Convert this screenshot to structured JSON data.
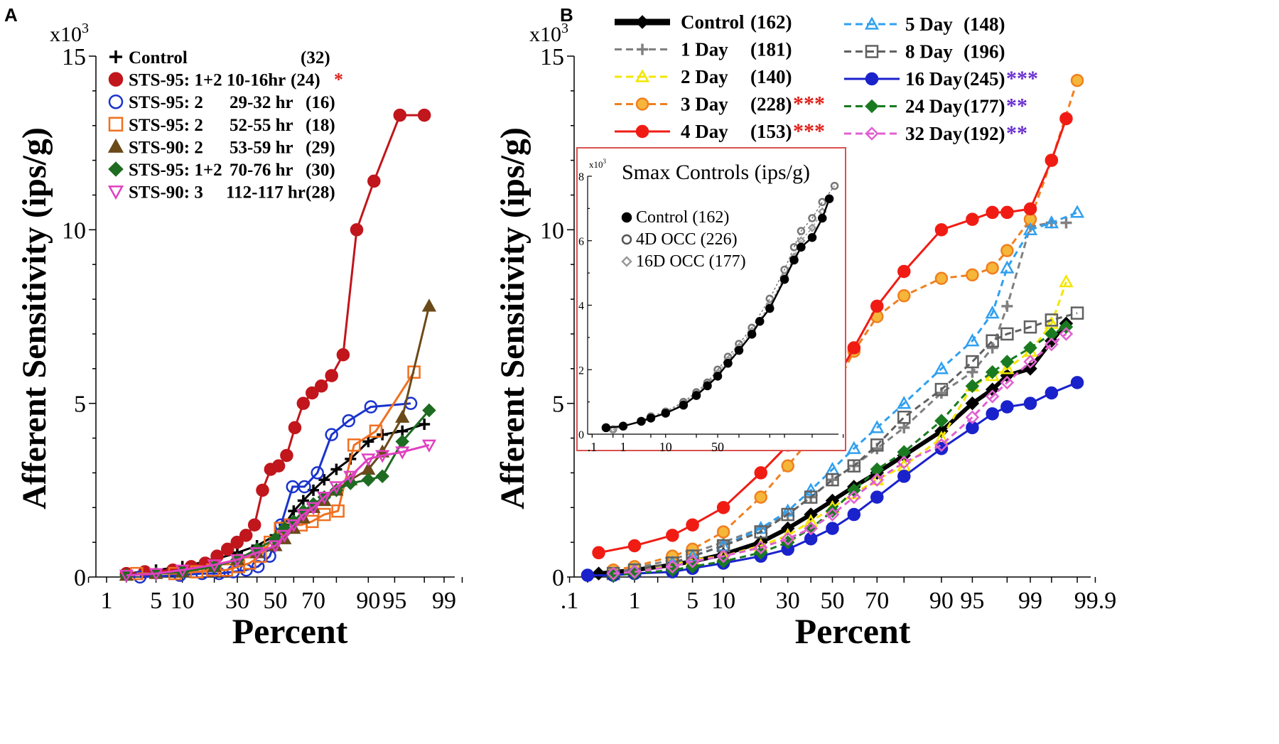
{
  "chart_data": [
    {
      "panel": "A",
      "type": "line",
      "xscale": "probability",
      "xlabel": "Percent",
      "ylabel": "Afferent Sensitivity (ips/g)",
      "ymultiplier": "x10",
      "ymultiplier_exp": "3",
      "ylim": [
        0,
        15
      ],
      "xticks": [
        1,
        5,
        10,
        30,
        50,
        70,
        90,
        95,
        99
      ],
      "yticks": [
        0,
        5,
        10,
        15
      ],
      "legend_position": "top-left",
      "series": [
        {
          "name": "Control",
          "n": "(32)",
          "color": "#000000",
          "marker": "plus",
          "fill": "none",
          "dashed": false,
          "x": [
            2,
            5,
            10,
            20,
            30,
            40,
            50,
            55,
            60,
            65,
            70,
            75,
            80,
            85,
            90,
            93,
            96,
            98
          ],
          "y": [
            0.1,
            0.2,
            0.3,
            0.5,
            0.7,
            0.9,
            1.2,
            1.5,
            1.9,
            2.2,
            2.5,
            2.8,
            3.1,
            3.4,
            3.9,
            4.1,
            4.2,
            4.4
          ]
        },
        {
          "name": "STS-95: 1+2 10-16hr",
          "n": "(24)",
          "sig": "*",
          "sig_color": "#e0201a",
          "color": "#c0161c",
          "marker": "circle",
          "fill": "#c0161c",
          "dashed": false,
          "x": [
            2,
            3.6,
            7.9,
            12.3,
            16.7,
            21.1,
            25.5,
            29.9,
            34.3,
            38.7,
            43,
            47.4,
            51.8,
            56.2,
            60.6,
            65,
            69.4,
            73.7,
            78.1,
            82.5,
            86.9,
            91.3,
            95.7,
            98
          ],
          "y": [
            0.1,
            0.15,
            0.2,
            0.3,
            0.4,
            0.6,
            0.8,
            1.0,
            1.2,
            1.5,
            2.5,
            3.1,
            3.2,
            3.5,
            4.3,
            5.0,
            5.3,
            5.5,
            5.8,
            6.4,
            10.0,
            11.4,
            13.3,
            13.3
          ]
        },
        {
          "name": "STS-95: 2",
          "time": "29-32 hr",
          "n": "(16)",
          "color": "#1a33cc",
          "marker": "circle",
          "fill": "none",
          "dashed": false,
          "x": [
            3.1,
            9.4,
            15.6,
            21.9,
            28.1,
            34.4,
            40.6,
            46.9,
            53.1,
            59.4,
            65.6,
            71.9,
            78.1,
            84.4,
            90.6,
            96.9
          ],
          "y": [
            0.0,
            0.05,
            0.1,
            0.1,
            0.15,
            0.2,
            0.3,
            0.6,
            1.5,
            2.6,
            2.6,
            3.0,
            4.1,
            4.5,
            4.9,
            5.0
          ]
        },
        {
          "name": "STS-95: 2",
          "time": "52-55 hr",
          "n": "(18)",
          "color": "#f07020",
          "marker": "square",
          "fill": "none",
          "dashed": false,
          "x": [
            2.8,
            8.3,
            13.9,
            19.4,
            25,
            30.6,
            36.1,
            41.7,
            47.2,
            52.8,
            58.3,
            63.9,
            69.4,
            75,
            80.6,
            86.1,
            91.7,
            97.2
          ],
          "y": [
            0.1,
            0.1,
            0.15,
            0.2,
            0.2,
            0.3,
            0.4,
            0.6,
            1.0,
            1.4,
            1.5,
            1.5,
            1.6,
            1.8,
            1.9,
            3.8,
            4.2,
            5.9
          ]
        },
        {
          "name": "STS-90: 2",
          "time": "53-59 hr",
          "n": "(29)",
          "color": "#6b4a1a",
          "marker": "triangle",
          "fill": "#6b4a1a",
          "dashed": false,
          "x": [
            2,
            5,
            10,
            20,
            30,
            40,
            50,
            55,
            60,
            65,
            70,
            75,
            80,
            85,
            90,
            93,
            96,
            98.3
          ],
          "y": [
            0.05,
            0.1,
            0.15,
            0.3,
            0.5,
            0.7,
            0.9,
            1.1,
            1.4,
            1.7,
            2.0,
            2.2,
            2.5,
            2.8,
            3.1,
            3.6,
            4.6,
            7.8
          ]
        },
        {
          "name": "STS-95: 1+2",
          "time": "70-76 hr",
          "n": "(30)",
          "color": "#1e6b22",
          "marker": "diamond",
          "fill": "#1e6b22",
          "dashed": false,
          "x": [
            2,
            5,
            10,
            20,
            30,
            40,
            50,
            55,
            60,
            65,
            70,
            75,
            80,
            85,
            90,
            93,
            96,
            98.3
          ],
          "y": [
            0.05,
            0.1,
            0.15,
            0.3,
            0.5,
            0.8,
            1.1,
            1.4,
            1.6,
            1.9,
            2.1,
            2.3,
            2.5,
            2.7,
            2.8,
            2.9,
            3.9,
            4.8
          ]
        },
        {
          "name": "STS-90: 3",
          "time": "112-117 hr",
          "n": "(28)",
          "color": "#e040c0",
          "marker": "triangle-down",
          "fill": "none",
          "dashed": false,
          "x": [
            2,
            5,
            10,
            20,
            30,
            40,
            50,
            55,
            60,
            65,
            70,
            75,
            80,
            85,
            90,
            93,
            96,
            98.3
          ],
          "y": [
            0.05,
            0.1,
            0.2,
            0.35,
            0.5,
            0.7,
            0.9,
            1.2,
            1.5,
            1.8,
            2.0,
            2.3,
            2.6,
            2.9,
            3.4,
            3.5,
            3.6,
            3.8
          ]
        }
      ]
    },
    {
      "panel": "B",
      "type": "line",
      "xscale": "probability",
      "xlabel": "Percent",
      "ylabel": "Afferent Sensitivity (ips/g)",
      "ymultiplier": "x10",
      "ymultiplier_exp": "3",
      "ylim": [
        0,
        15
      ],
      "xticks": [
        ".1",
        "1",
        "5",
        "10",
        "30",
        "50",
        "70",
        "90",
        "95",
        "99",
        "99.9"
      ],
      "yticks": [
        0,
        5,
        10,
        15
      ],
      "legend_position": "top",
      "series": [
        {
          "name": "Control",
          "n": "(162)",
          "color": "#000000",
          "marker": "diamond",
          "fill": "#000000",
          "dashed": false,
          "x": [
            0.3,
            1,
            3,
            5,
            10,
            20,
            30,
            40,
            50,
            60,
            70,
            80,
            90,
            95,
            97,
            98,
            99,
            99.5,
            99.7
          ],
          "y": [
            0.1,
            0.2,
            0.35,
            0.45,
            0.65,
            1.0,
            1.4,
            1.8,
            2.2,
            2.6,
            3.0,
            3.5,
            4.2,
            5.0,
            5.4,
            5.8,
            6.0,
            6.8,
            7.3
          ]
        },
        {
          "name": "1 Day",
          "n": "(181)",
          "color": "#808080",
          "marker": "plus",
          "fill": "none",
          "dashed": true,
          "x": [
            0.5,
            1,
            3,
            5,
            10,
            20,
            30,
            40,
            50,
            60,
            70,
            80,
            90,
            95,
            97,
            98,
            99,
            99.5,
            99.7
          ],
          "y": [
            0.15,
            0.25,
            0.5,
            0.7,
            1.0,
            1.4,
            1.8,
            2.3,
            2.8,
            3.2,
            3.7,
            4.3,
            5.3,
            5.9,
            6.6,
            7.8,
            10.1,
            10.2,
            10.2
          ]
        },
        {
          "name": "2 Day",
          "n": "(140)",
          "color": "#f2e600",
          "marker": "triangle",
          "fill": "none",
          "dashed": true,
          "x": [
            0.5,
            1,
            3,
            5,
            10,
            20,
            30,
            40,
            50,
            60,
            70,
            80,
            90,
            95,
            97,
            98,
            99,
            99.5,
            99.7
          ],
          "y": [
            0.1,
            0.2,
            0.35,
            0.5,
            0.6,
            0.9,
            1.2,
            1.6,
            2.0,
            2.4,
            2.8,
            3.2,
            4.0,
            5.5,
            5.8,
            6.0,
            6.5,
            7.3,
            8.5
          ]
        },
        {
          "name": "3 Day",
          "n": "(228)",
          "sig": "***",
          "sig_color": "#e0201a",
          "color": "#f08020",
          "marker": "circle",
          "fill": "#f5b63a",
          "dashed": true,
          "x": [
            0.5,
            1,
            3,
            5,
            10,
            20,
            30,
            40,
            50,
            60,
            70,
            80,
            90,
            95,
            97,
            98,
            99,
            99.5,
            99.8
          ],
          "y": [
            0.2,
            0.3,
            0.6,
            0.8,
            1.3,
            2.3,
            3.2,
            4.0,
            5.3,
            6.5,
            7.5,
            8.1,
            8.6,
            8.7,
            8.9,
            9.4,
            10.3,
            12.0,
            14.3
          ]
        },
        {
          "name": "4 Day",
          "n": "(153)",
          "sig": "***",
          "sig_color": "#e0201a",
          "color": "#f01c14",
          "marker": "circle",
          "fill": "#f01c14",
          "dashed": false,
          "x": [
            0.3,
            1,
            3,
            5,
            10,
            20,
            30,
            40,
            50,
            60,
            70,
            80,
            90,
            95,
            97,
            98,
            99,
            99.5,
            99.7
          ],
          "y": [
            0.7,
            0.9,
            1.2,
            1.5,
            2.0,
            3.0,
            3.8,
            4.5,
            5.5,
            6.6,
            7.8,
            8.8,
            10.0,
            10.3,
            10.5,
            10.5,
            10.6,
            12.0,
            13.2
          ]
        },
        {
          "name": "5 Day",
          "n": "(148)",
          "color": "#30a0f0",
          "marker": "triangle",
          "fill": "none",
          "dashed": true,
          "x": [
            0.5,
            1,
            3,
            5,
            10,
            20,
            30,
            40,
            50,
            60,
            70,
            80,
            90,
            95,
            97,
            98,
            99,
            99.5,
            99.8
          ],
          "y": [
            0.1,
            0.2,
            0.4,
            0.6,
            0.9,
            1.4,
            1.9,
            2.5,
            3.1,
            3.7,
            4.3,
            5.0,
            6.0,
            6.8,
            7.6,
            8.9,
            10.0,
            10.2,
            10.5
          ]
        },
        {
          "name": "8 Day",
          "n": "(196)",
          "color": "#606060",
          "marker": "square",
          "fill": "none",
          "dashed": true,
          "x": [
            0.5,
            1,
            3,
            5,
            10,
            20,
            30,
            40,
            50,
            60,
            70,
            80,
            90,
            95,
            97,
            98,
            99,
            99.5,
            99.8
          ],
          "y": [
            0.1,
            0.2,
            0.4,
            0.6,
            0.9,
            1.3,
            1.8,
            2.3,
            2.8,
            3.2,
            3.8,
            4.6,
            5.4,
            6.2,
            6.8,
            7.0,
            7.2,
            7.4,
            7.6
          ]
        },
        {
          "name": "16 Day",
          "n": "(245)",
          "sig": "***",
          "sig_color": "#6a2fd0",
          "color": "#1a22cc",
          "marker": "circle",
          "fill": "#1a22cc",
          "dashed": false,
          "x": [
            0.2,
            0.5,
            1,
            3,
            5,
            10,
            20,
            30,
            40,
            50,
            60,
            70,
            80,
            90,
            95,
            97,
            98,
            99,
            99.5,
            99.8
          ],
          "y": [
            0.05,
            0.05,
            0.1,
            0.15,
            0.25,
            0.4,
            0.6,
            0.8,
            1.1,
            1.4,
            1.8,
            2.3,
            2.9,
            3.7,
            4.3,
            4.7,
            4.9,
            5.0,
            5.3,
            5.6
          ]
        },
        {
          "name": "24 Day",
          "n": "(177)",
          "sig": "**",
          "sig_color": "#6a2fd0",
          "color": "#1a7a20",
          "marker": "diamond",
          "fill": "#1a7a20",
          "dashed": true,
          "x": [
            0.5,
            1,
            3,
            5,
            10,
            20,
            30,
            40,
            50,
            60,
            70,
            80,
            90,
            95,
            97,
            98,
            99,
            99.5,
            99.7
          ],
          "y": [
            0.05,
            0.1,
            0.2,
            0.3,
            0.45,
            0.7,
            1.0,
            1.4,
            1.9,
            2.5,
            3.1,
            3.6,
            4.5,
            5.5,
            5.9,
            6.2,
            6.6,
            7.0,
            7.2
          ]
        },
        {
          "name": "32 Day",
          "n": "(192)",
          "sig": "**",
          "sig_color": "#6a2fd0",
          "color": "#e060d0",
          "marker": "diamond",
          "fill": "none",
          "dashed": true,
          "x": [
            0.5,
            1,
            3,
            5,
            10,
            20,
            30,
            40,
            50,
            60,
            70,
            80,
            90,
            95,
            97,
            98,
            99,
            99.5,
            99.7
          ],
          "y": [
            0.1,
            0.15,
            0.3,
            0.45,
            0.6,
            0.85,
            1.1,
            1.4,
            1.8,
            2.3,
            2.8,
            3.3,
            3.8,
            4.6,
            5.2,
            5.6,
            6.2,
            6.7,
            7.0
          ]
        }
      ]
    },
    {
      "panel": "B-inset",
      "type": "scatter",
      "title": "Smax Controls (ips/g)",
      "xscale": "probability",
      "ymultiplier": "x10",
      "ymultiplier_exp": "3",
      "ylim": [
        0,
        8
      ],
      "xticks": [
        ".1",
        "1",
        "10",
        "50"
      ],
      "yticks": [
        0,
        2,
        4,
        6,
        8
      ],
      "legend_position": "left",
      "series": [
        {
          "name": "Control",
          "n": "(162)",
          "color": "#000000",
          "marker": "circle",
          "fill": "#000000",
          "x": [
            0.3,
            1,
            3,
            5,
            10,
            20,
            30,
            40,
            50,
            60,
            70,
            80,
            85,
            90,
            95,
            97,
            98,
            99,
            99.5,
            99.7
          ],
          "y": [
            0.2,
            0.25,
            0.4,
            0.5,
            0.65,
            0.9,
            1.2,
            1.5,
            1.8,
            2.2,
            2.6,
            3.1,
            3.5,
            3.9,
            4.8,
            5.4,
            5.8,
            6.1,
            6.7,
            7.3
          ]
        },
        {
          "name": "4D OCC",
          "n": "(226)",
          "color": "#777777",
          "marker": "circle",
          "fill": "none",
          "x": [
            0.5,
            1,
            3,
            5,
            10,
            20,
            30,
            40,
            50,
            60,
            70,
            80,
            90,
            95,
            97,
            98,
            99,
            99.5,
            99.8
          ],
          "y": [
            0.15,
            0.25,
            0.4,
            0.55,
            0.7,
            1.0,
            1.3,
            1.6,
            2.0,
            2.4,
            2.8,
            3.3,
            4.2,
            5.1,
            5.8,
            6.3,
            6.7,
            7.2,
            7.7
          ]
        },
        {
          "name": "16D OCC",
          "n": "(177)",
          "color": "#999999",
          "marker": "diamond",
          "fill": "none",
          "x": [
            0.5,
            1,
            3,
            5,
            10,
            20,
            30,
            40,
            50,
            60,
            70,
            80,
            90,
            95,
            97,
            98,
            99,
            99.5
          ],
          "y": [
            0.15,
            0.25,
            0.4,
            0.55,
            0.7,
            0.95,
            1.25,
            1.55,
            1.9,
            2.3,
            2.7,
            3.2,
            4.0,
            4.9,
            5.5,
            6.0,
            6.4,
            6.9
          ]
        }
      ]
    }
  ],
  "panel_letters": {
    "a": "A",
    "b": "B"
  }
}
